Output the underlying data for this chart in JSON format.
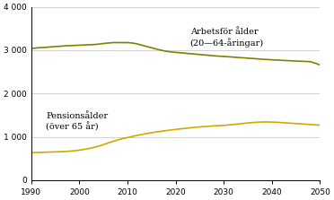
{
  "line1_label_line1": "Arbetsför ålder",
  "line1_label_line2": "(20—64-åringar)",
  "line2_label_line1": "Pensionsålder",
  "line2_label_line2": "(över 65 år)",
  "line1_color": "#808000",
  "line2_color": "#d4a800",
  "background_color": "#ffffff",
  "grid_color": "#c0c0c0",
  "xmin": 1990,
  "xmax": 2050,
  "ymin": 0,
  "ymax": 4000,
  "yticks": [
    0,
    1000,
    2000,
    3000,
    4000
  ],
  "ytick_labels": [
    "0",
    "1 000",
    "2 000",
    "3 000",
    "4 000"
  ],
  "xticks": [
    1990,
    2000,
    2010,
    2020,
    2030,
    2040,
    2050
  ],
  "line1_x": [
    1990,
    1991,
    1992,
    1993,
    1994,
    1995,
    1996,
    1997,
    1998,
    1999,
    2000,
    2001,
    2002,
    2003,
    2004,
    2005,
    2006,
    2007,
    2008,
    2009,
    2010,
    2011,
    2012,
    2013,
    2014,
    2015,
    2016,
    2017,
    2018,
    2019,
    2020,
    2021,
    2022,
    2023,
    2024,
    2025,
    2026,
    2027,
    2028,
    2029,
    2030,
    2031,
    2032,
    2033,
    2034,
    2035,
    2036,
    2037,
    2038,
    2039,
    2040,
    2041,
    2042,
    2043,
    2044,
    2045,
    2046,
    2047,
    2048,
    2049,
    2050
  ],
  "line1_y": [
    3040,
    3050,
    3060,
    3065,
    3075,
    3085,
    3090,
    3100,
    3105,
    3110,
    3115,
    3120,
    3125,
    3130,
    3140,
    3155,
    3165,
    3175,
    3175,
    3175,
    3175,
    3165,
    3145,
    3115,
    3085,
    3055,
    3025,
    3000,
    2975,
    2960,
    2950,
    2940,
    2930,
    2920,
    2910,
    2900,
    2890,
    2880,
    2870,
    2862,
    2855,
    2848,
    2840,
    2832,
    2824,
    2816,
    2808,
    2800,
    2792,
    2785,
    2778,
    2772,
    2766,
    2760,
    2755,
    2750,
    2745,
    2740,
    2735,
    2700,
    2660
  ],
  "line2_x": [
    1990,
    1991,
    1992,
    1993,
    1994,
    1995,
    1996,
    1997,
    1998,
    1999,
    2000,
    2001,
    2002,
    2003,
    2004,
    2005,
    2006,
    2007,
    2008,
    2009,
    2010,
    2011,
    2012,
    2013,
    2014,
    2015,
    2016,
    2017,
    2018,
    2019,
    2020,
    2021,
    2022,
    2023,
    2024,
    2025,
    2026,
    2027,
    2028,
    2029,
    2030,
    2031,
    2032,
    2033,
    2034,
    2035,
    2036,
    2037,
    2038,
    2039,
    2040,
    2041,
    2042,
    2043,
    2044,
    2045,
    2046,
    2047,
    2048,
    2049,
    2050
  ],
  "line2_y": [
    635,
    638,
    641,
    644,
    648,
    652,
    656,
    661,
    668,
    678,
    692,
    710,
    730,
    755,
    785,
    820,
    858,
    895,
    930,
    958,
    983,
    1008,
    1033,
    1055,
    1075,
    1095,
    1112,
    1128,
    1143,
    1157,
    1170,
    1183,
    1195,
    1207,
    1218,
    1228,
    1237,
    1245,
    1252,
    1258,
    1263,
    1273,
    1283,
    1295,
    1308,
    1320,
    1330,
    1337,
    1342,
    1343,
    1340,
    1335,
    1328,
    1320,
    1313,
    1306,
    1299,
    1291,
    1283,
    1275,
    1268
  ],
  "line1_ann_x": 2023,
  "line1_ann_y": 3520,
  "line2_ann_x": 1993,
  "line2_ann_y": 1580
}
